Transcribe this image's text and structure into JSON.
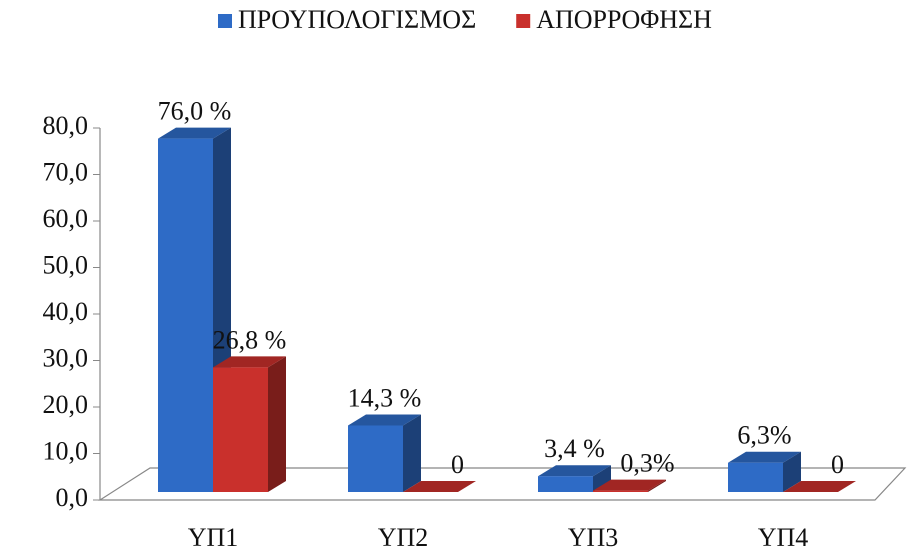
{
  "chart_data": {
    "type": "bar3d",
    "categories": [
      "ΥΠ1",
      "ΥΠ2",
      "ΥΠ3",
      "ΥΠ4"
    ],
    "series": [
      {
        "name": "ΠΡΟΥΠΟΛΟΓΙΣΜΟΣ",
        "color": "#2e6bc6",
        "values": [
          76.0,
          14.3,
          3.4,
          6.3
        ],
        "value_labels": [
          "76,0 %",
          "14,3 %",
          "3,4 %",
          "6,3%"
        ]
      },
      {
        "name": "ΑΠΟΡΡΟΦΗΣΗ",
        "color": "#c9302c",
        "values": [
          26.8,
          0,
          0.3,
          0
        ],
        "value_labels": [
          "26,8 %",
          "0",
          "0,3%",
          "0"
        ]
      }
    ],
    "ylim": [
      0,
      80
    ],
    "yticks": [
      {
        "value": 0,
        "label": "0,0"
      },
      {
        "value": 10,
        "label": "10,0"
      },
      {
        "value": 20,
        "label": "20,0"
      },
      {
        "value": 30,
        "label": "30,0"
      },
      {
        "value": 40,
        "label": "40,0"
      },
      {
        "value": 50,
        "label": "50,0"
      },
      {
        "value": 60,
        "label": "60,0"
      },
      {
        "value": 70,
        "label": "70,0"
      },
      {
        "value": 80,
        "label": "80,0"
      }
    ],
    "legend": "top"
  }
}
